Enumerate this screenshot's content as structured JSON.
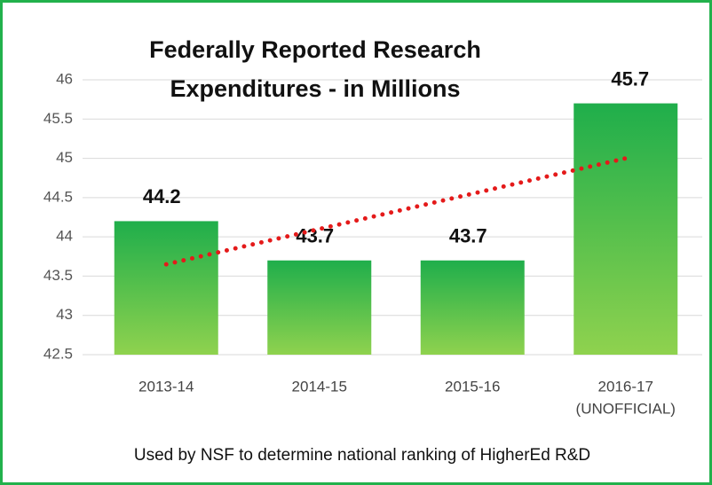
{
  "chart_data": {
    "type": "bar",
    "title": [
      "Federally Reported Research",
      "Expenditures - in Millions"
    ],
    "categories": [
      "2013-14",
      "2014-15",
      "2015-16",
      "2016-17"
    ],
    "category_notes": [
      null,
      null,
      null,
      "(UNOFFICIAL)"
    ],
    "values": [
      44.2,
      43.7,
      43.7,
      45.7
    ],
    "color": [
      "#1fae4b",
      "#8fd24e"
    ],
    "ylim": [
      42.5,
      46
    ],
    "yticks": [
      42.5,
      43,
      43.5,
      44,
      44.5,
      45,
      45.5,
      46
    ],
    "grid": true,
    "trendline": {
      "type": "linear",
      "color": "#e41a1a",
      "style": "dotted"
    },
    "caption": "Used by NSF to determine national ranking of HigherEd R&D"
  }
}
